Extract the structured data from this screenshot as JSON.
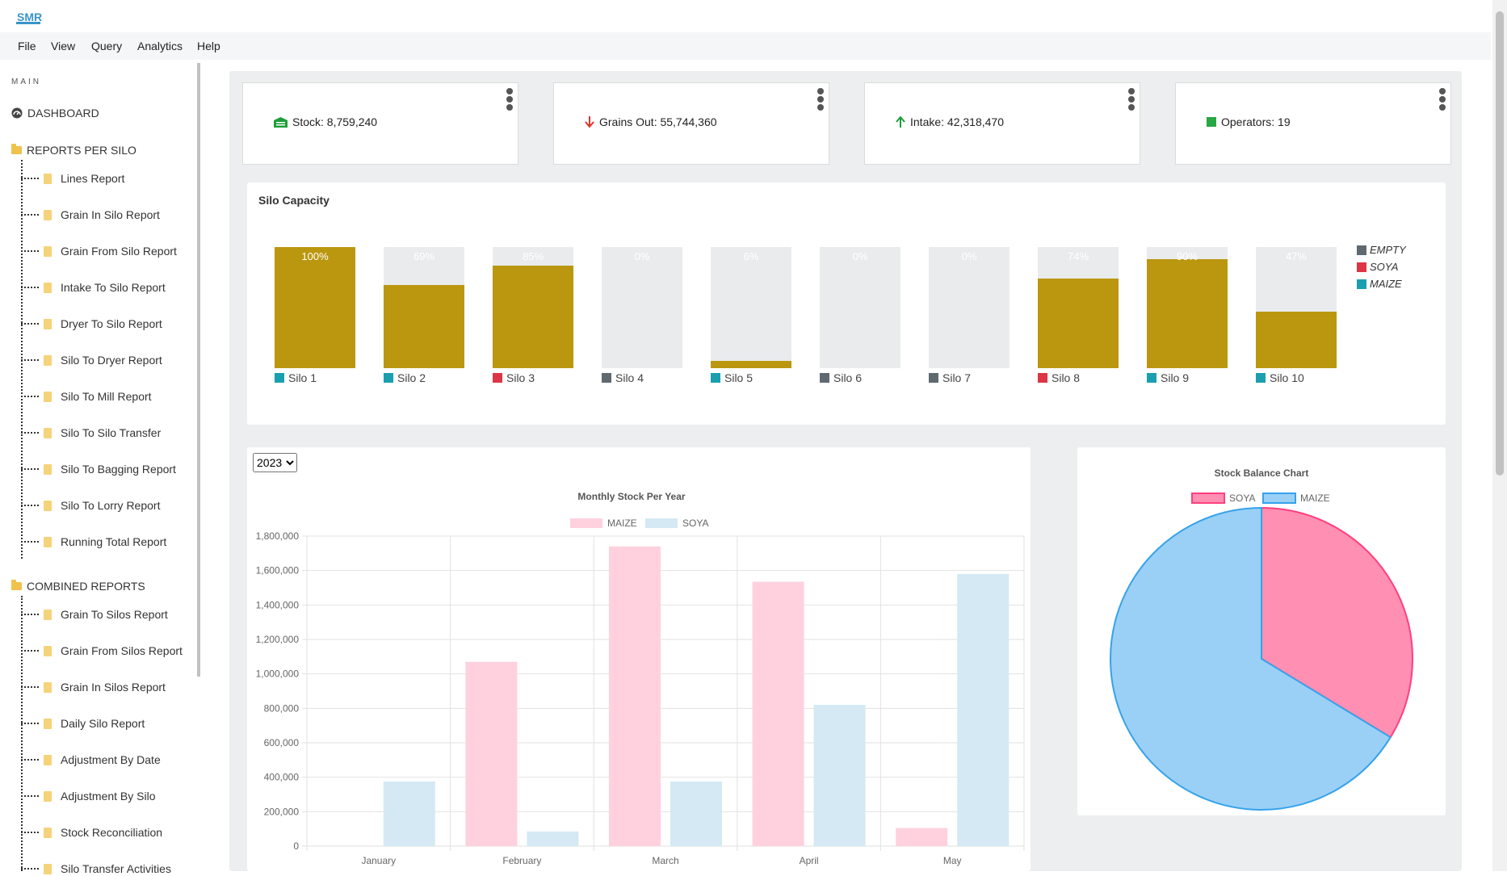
{
  "app": {
    "logo_text": "SMR"
  },
  "menu": [
    "File",
    "View",
    "Query",
    "Analytics",
    "Help"
  ],
  "sidebar": {
    "main_label": "MAIN",
    "dashboard": "DASHBOARD",
    "reports_per_silo": {
      "label": "REPORTS PER SILO",
      "items": [
        "Lines Report",
        "Grain In Silo Report",
        "Grain From Silo Report",
        "Intake To Silo Report",
        "Dryer To Silo Report",
        "Silo To Dryer Report",
        "Silo To Mill Report",
        "Silo To Silo Transfer",
        "Silo To Bagging Report",
        "Silo To Lorry Report",
        "Running Total Report"
      ]
    },
    "combined_reports": {
      "label": "COMBINED REPORTS",
      "items": [
        "Grain To Silos Report",
        "Grain From Silos Report",
        "Grain In Silos Report",
        "Daily Silo Report",
        "Adjustment By Date",
        "Adjustment By Silo",
        "Stock Reconciliation",
        "Silo Transfer Activities"
      ]
    }
  },
  "stats": [
    {
      "label": "Stock: 8,759,240",
      "icon": "warehouse-icon",
      "color": "#1e9e3a"
    },
    {
      "label": "Grains Out: 55,744,360",
      "icon": "arrow-down-icon",
      "color": "#e0352b"
    },
    {
      "label": "Intake: 42,318,470",
      "icon": "arrow-up-icon",
      "color": "#1e9e3a"
    },
    {
      "label": "Operators: 19",
      "icon": "square-icon",
      "color": "#28a745"
    }
  ],
  "silo_capacity": {
    "title": "Silo Capacity",
    "legend": [
      {
        "name": "EMPTY",
        "color": "#5f6970"
      },
      {
        "name": "SOYA",
        "color": "#dc3545"
      },
      {
        "name": "MAIZE",
        "color": "#1a9fb0"
      }
    ],
    "silos": [
      {
        "name": "Silo 1",
        "pct": "100%",
        "level": 100,
        "type": "MAIZE"
      },
      {
        "name": "Silo 2",
        "pct": "69%",
        "level": 69,
        "type": "MAIZE"
      },
      {
        "name": "Silo 3",
        "pct": "85%",
        "level": 85,
        "type": "SOYA"
      },
      {
        "name": "Silo 4",
        "pct": "0%",
        "level": 0,
        "type": "EMPTY"
      },
      {
        "name": "Silo 5",
        "pct": "6%",
        "level": 6,
        "type": "MAIZE"
      },
      {
        "name": "Silo 6",
        "pct": "0%",
        "level": 0,
        "type": "EMPTY"
      },
      {
        "name": "Silo 7",
        "pct": "0%",
        "level": 0,
        "type": "EMPTY"
      },
      {
        "name": "Silo 8",
        "pct": "74%",
        "level": 74,
        "type": "SOYA"
      },
      {
        "name": "Silo 9",
        "pct": "90%",
        "level": 90,
        "type": "MAIZE"
      },
      {
        "name": "Silo 10",
        "pct": "47%",
        "level": 47,
        "type": "MAIZE"
      }
    ]
  },
  "year_select": {
    "value": "2023",
    "options": [
      "2023"
    ]
  },
  "chart_data": [
    {
      "type": "bar",
      "title": "Monthly Stock Per Year",
      "categories": [
        "January",
        "February",
        "March",
        "April",
        "May"
      ],
      "series": [
        {
          "name": "MAIZE",
          "values": [
            0,
            1070000,
            1740000,
            1535000,
            105000
          ],
          "color": "#ffd1de"
        },
        {
          "name": "SOYA",
          "values": [
            375000,
            85000,
            375000,
            820000,
            1580000
          ],
          "color": "#d4e9f3"
        }
      ],
      "ylim": [
        0,
        1800000
      ],
      "yticks": [
        0,
        200000,
        400000,
        600000,
        800000,
        1000000,
        1200000,
        1400000,
        1600000,
        1800000
      ],
      "ytick_labels": [
        "0",
        "200,000",
        "400,000",
        "600,000",
        "800,000",
        "1,000,000",
        "1,200,000",
        "1,400,000",
        "1,600,000",
        "1,800,000"
      ],
      "legend": "top",
      "grid": true
    },
    {
      "type": "pie",
      "title": "Stock Balance Chart",
      "labels": [
        "SOYA",
        "MAIZE"
      ],
      "values": [
        33.7,
        66.3
      ],
      "colors": [
        "#ff8fb3",
        "#9ad0f5"
      ],
      "border_colors": [
        "#ff3f7f",
        "#36a2eb"
      ],
      "legend": "top"
    }
  ]
}
